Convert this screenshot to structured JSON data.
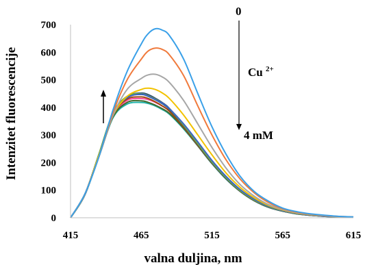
{
  "chart_data": {
    "type": "line",
    "title": "",
    "xlabel": "valna duljina, nm",
    "ylabel": "Intenzitet fluorescencije",
    "xlim": [
      415,
      615
    ],
    "ylim": [
      0,
      700
    ],
    "x_ticks": [
      "415",
      "465",
      "515",
      "565",
      "615"
    ],
    "y_ticks": [
      "0",
      "100",
      "200",
      "300",
      "400",
      "500",
      "600",
      "700"
    ],
    "grid": false,
    "legend": "none",
    "x": [
      415,
      425,
      435,
      445,
      455,
      465,
      470,
      475,
      480,
      485,
      495,
      505,
      515,
      525,
      535,
      545,
      555,
      565,
      575,
      585,
      595,
      605,
      615
    ],
    "series": [
      {
        "color": "#3aa0e8",
        "values": [
          0,
          85,
          220,
          390,
          530,
          630,
          668,
          685,
          680,
          660,
          575,
          450,
          330,
          230,
          150,
          95,
          60,
          35,
          22,
          14,
          9,
          5,
          3
        ]
      },
      {
        "color": "#f07a3c",
        "values": [
          0,
          85,
          220,
          380,
          500,
          575,
          605,
          615,
          610,
          590,
          515,
          405,
          300,
          210,
          140,
          90,
          55,
          33,
          20,
          13,
          8,
          5,
          3
        ]
      },
      {
        "color": "#a6a6a6",
        "values": [
          0,
          85,
          220,
          370,
          465,
          505,
          518,
          520,
          510,
          490,
          425,
          340,
          255,
          180,
          120,
          78,
          48,
          30,
          18,
          12,
          7,
          4,
          2
        ]
      },
      {
        "color": "#f2c200",
        "values": [
          0,
          84,
          225,
          370,
          440,
          465,
          470,
          465,
          452,
          432,
          372,
          300,
          228,
          162,
          110,
          72,
          45,
          28,
          17,
          11,
          7,
          4,
          2
        ]
      },
      {
        "color": "#3b63c4",
        "values": [
          0,
          82,
          225,
          375,
          435,
          448,
          440,
          428,
          415,
          395,
          340,
          275,
          208,
          150,
          102,
          67,
          42,
          26,
          16,
          10,
          6,
          4,
          2
        ]
      },
      {
        "color": "#70ad47",
        "values": [
          0,
          82,
          230,
          380,
          440,
          450,
          442,
          430,
          415,
          395,
          335,
          268,
          202,
          145,
          98,
          64,
          40,
          25,
          15,
          10,
          6,
          3,
          2
        ]
      },
      {
        "color": "#1f4e79",
        "values": [
          0,
          83,
          228,
          378,
          438,
          447,
          440,
          428,
          413,
          393,
          333,
          266,
          200,
          143,
          97,
          63,
          39,
          24,
          15,
          9,
          6,
          3,
          2
        ]
      },
      {
        "color": "#9e480e",
        "values": [
          0,
          84,
          226,
          372,
          430,
          438,
          432,
          420,
          405,
          386,
          328,
          262,
          198,
          142,
          96,
          62,
          39,
          24,
          15,
          9,
          6,
          3,
          2
        ]
      },
      {
        "color": "#636363",
        "values": [
          0,
          84,
          226,
          376,
          438,
          448,
          442,
          430,
          414,
          393,
          332,
          264,
          198,
          142,
          96,
          62,
          38,
          24,
          15,
          9,
          6,
          3,
          2
        ]
      },
      {
        "color": "#264478",
        "values": [
          0,
          83,
          228,
          378,
          440,
          452,
          446,
          433,
          417,
          396,
          334,
          265,
          199,
          142,
          96,
          62,
          38,
          24,
          14,
          9,
          5,
          3,
          2
        ]
      },
      {
        "color": "#43682b",
        "values": [
          0,
          82,
          222,
          365,
          418,
          424,
          418,
          408,
          395,
          378,
          325,
          262,
          198,
          142,
          96,
          62,
          39,
          24,
          15,
          9,
          6,
          3,
          2
        ]
      },
      {
        "color": "#20b2aa",
        "values": [
          0,
          82,
          220,
          362,
          412,
          418,
          414,
          405,
          392,
          375,
          322,
          260,
          196,
          140,
          95,
          61,
          38,
          24,
          14,
          9,
          5,
          3,
          2
        ]
      },
      {
        "color": "#ff4fa3",
        "values": [
          0,
          84,
          224,
          368,
          425,
          432,
          428,
          418,
          404,
          386,
          330,
          265,
          200,
          143,
          97,
          63,
          39,
          24,
          15,
          9,
          6,
          3,
          2
        ]
      }
    ],
    "annotations": {
      "top_label": "0",
      "ion_label": "Cu",
      "ion_charge": "2+",
      "bottom_label": "4 mM"
    }
  }
}
